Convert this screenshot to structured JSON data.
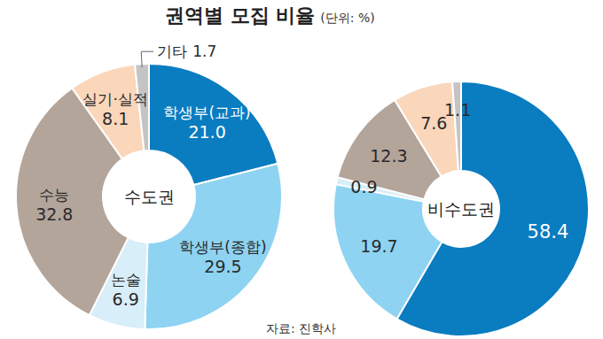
{
  "header": {
    "title": "권역별 모집 비율",
    "unit": "(단위: %)"
  },
  "source": "자료: 진학사",
  "chart_data": [
    {
      "type": "pie",
      "title": "수도권",
      "categories": [
        "학생부(교과)",
        "학생부(종합)",
        "논술",
        "수능",
        "실기·실적",
        "기타"
      ],
      "values": [
        21.0,
        29.5,
        6.9,
        32.8,
        8.1,
        1.7
      ],
      "value_labels": [
        "21.0",
        "29.5",
        "6.9",
        "32.8",
        "8.1",
        "1.7"
      ],
      "colors": [
        "#0a7cc0",
        "#8ed3f2",
        "#d8eef9",
        "#b4a59b",
        "#fad6ba",
        "#c4c4c4"
      ],
      "data_labels": true
    },
    {
      "type": "pie",
      "title": "비수도권",
      "categories": [
        null,
        null,
        null,
        null,
        null,
        null
      ],
      "values": [
        58.4,
        19.7,
        0.9,
        12.3,
        7.6,
        1.1
      ],
      "colors": [
        "#0a7cc0",
        "#8ed3f2",
        "#d8eef9",
        "#b4a59b",
        "#fad6ba",
        "#c4c4c4"
      ],
      "data_labels": true
    }
  ]
}
